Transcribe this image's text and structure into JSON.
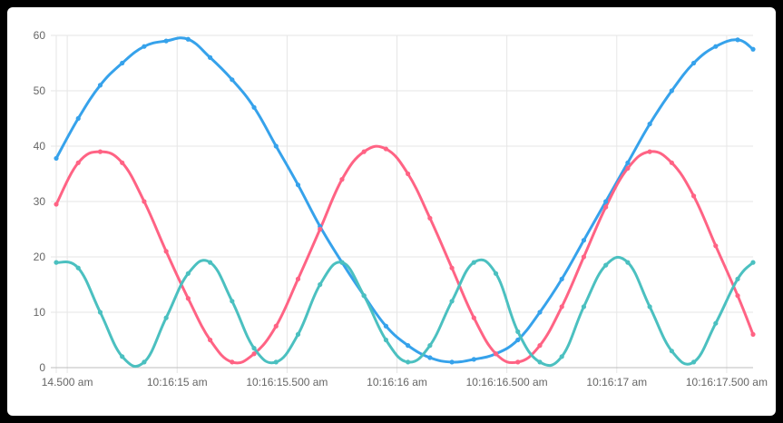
{
  "chart_data": {
    "type": "line",
    "title": "",
    "xlabel": "",
    "ylabel": "",
    "ylim": [
      0,
      60
    ],
    "yticks": [
      0,
      10,
      20,
      30,
      40,
      50,
      60
    ],
    "xlim": [
      14.45,
      17.62
    ],
    "xticks": [
      {
        "t": 14.5,
        "label": "14.500 am"
      },
      {
        "t": 15.0,
        "label": "10:16:15 am"
      },
      {
        "t": 15.5,
        "label": "10:16:15.500 am"
      },
      {
        "t": 16.0,
        "label": "10:16:16 am"
      },
      {
        "t": 16.5,
        "label": "10:16:16.500 am"
      },
      {
        "t": 17.0,
        "label": "10:16:17 am"
      },
      {
        "t": 17.5,
        "label": "10:16:17.500 am"
      }
    ],
    "grid": true,
    "legend": "none",
    "x": [
      14.45,
      14.55,
      14.65,
      14.75,
      14.85,
      14.95,
      15.05,
      15.15,
      15.25,
      15.35,
      15.45,
      15.55,
      15.65,
      15.75,
      15.85,
      15.95,
      16.05,
      16.15,
      16.25,
      16.35,
      16.45,
      16.55,
      16.65,
      16.75,
      16.85,
      16.95,
      17.05,
      17.15,
      17.25,
      17.35,
      17.45,
      17.55,
      17.62
    ],
    "series": [
      {
        "color": "#36a2eb",
        "values": [
          37.8,
          45.0,
          51.0,
          55.0,
          58.0,
          59.0,
          59.3,
          56.0,
          52.0,
          47.0,
          40.0,
          33.0,
          25.5,
          19.0,
          13.0,
          7.5,
          4.0,
          1.8,
          1.0,
          1.5,
          2.5,
          5.0,
          10.0,
          16.0,
          23.0,
          30.0,
          37.0,
          44.0,
          50.0,
          55.0,
          58.0,
          59.2,
          57.5
        ]
      },
      {
        "color": "#ff6384",
        "values": [
          29.5,
          37.0,
          39.0,
          37.0,
          30.0,
          21.0,
          12.5,
          5.0,
          1.0,
          2.5,
          7.5,
          16.0,
          25.0,
          34.0,
          39.0,
          39.5,
          35.0,
          27.0,
          18.0,
          9.0,
          2.5,
          1.0,
          4.0,
          11.0,
          20.0,
          29.0,
          36.0,
          39.0,
          37.0,
          31.0,
          22.0,
          13.0,
          6.0
        ]
      },
      {
        "color": "#4bc0c0",
        "values": [
          19.0,
          18.0,
          10.0,
          2.0,
          1.0,
          9.0,
          17.0,
          19.0,
          12.0,
          3.5,
          1.0,
          6.0,
          15.0,
          19.0,
          13.0,
          5.0,
          1.0,
          4.0,
          12.0,
          19.0,
          17.0,
          6.5,
          1.0,
          2.0,
          11.0,
          18.5,
          19.0,
          11.0,
          3.0,
          1.0,
          8.0,
          16.0,
          19.0
        ]
      }
    ]
  }
}
